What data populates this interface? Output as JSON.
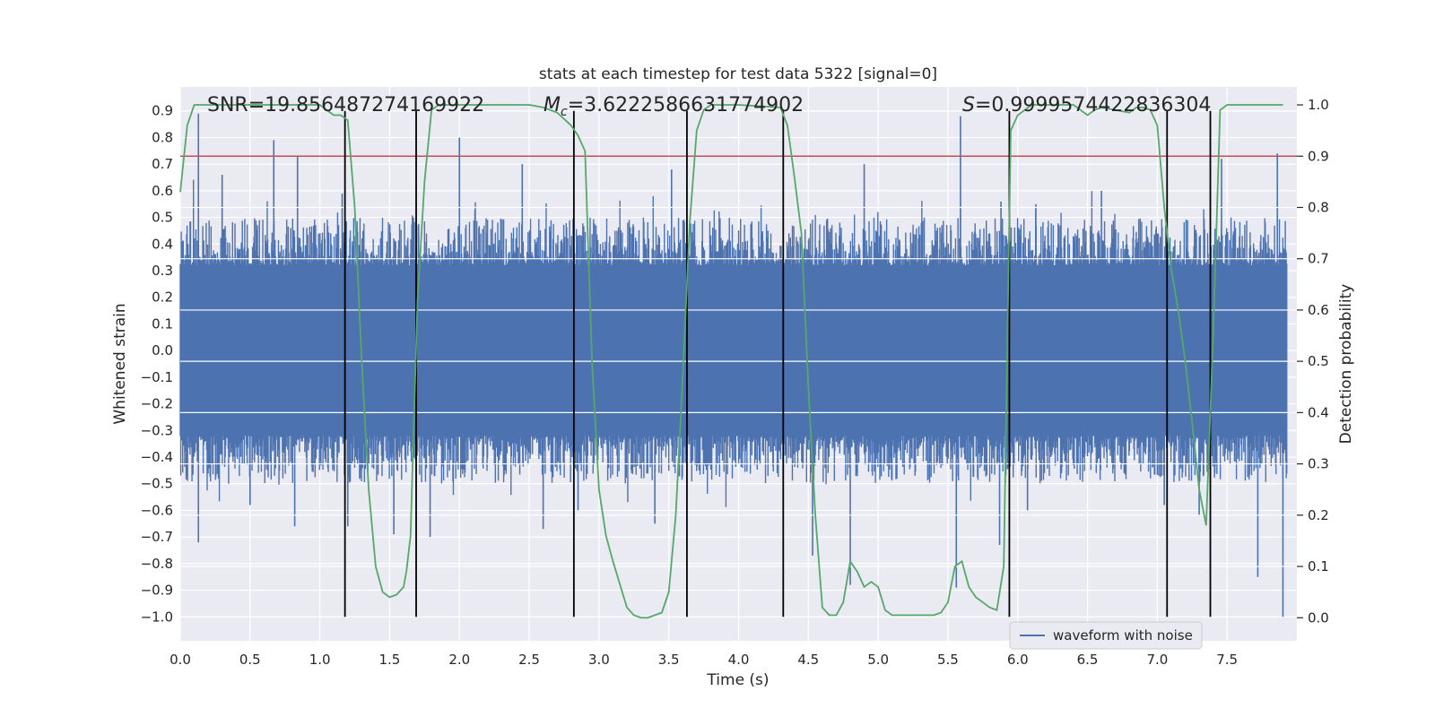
{
  "chart_data": {
    "type": "line",
    "title": "stats at each timestep for test data 5322 [signal=0]",
    "xlabel": "Time (s)",
    "ylabel": "Whitened strain",
    "y2label": "Detection probability",
    "xlim": [
      0.0,
      8.0
    ],
    "ylim": [
      -1.09,
      0.99
    ],
    "y2lim": [
      -0.045,
      1.035
    ],
    "xticks": [
      0.0,
      0.5,
      1.0,
      1.5,
      2.0,
      2.5,
      3.0,
      3.5,
      4.0,
      4.5,
      5.0,
      5.5,
      6.0,
      6.5,
      7.0,
      7.5
    ],
    "xtick_labels": [
      "0.0",
      "0.5",
      "1.0",
      "1.5",
      "2.0",
      "2.5",
      "3.0",
      "3.5",
      "4.0",
      "4.5",
      "5.0",
      "5.5",
      "6.0",
      "6.5",
      "7.0",
      "7.5"
    ],
    "yticks": [
      0.9,
      0.8,
      0.7,
      0.6,
      0.5,
      0.4,
      0.3,
      0.2,
      0.1,
      0.0,
      -0.1,
      -0.2,
      -0.3,
      -0.4,
      -0.5,
      -0.6,
      -0.7,
      -0.8,
      -0.9,
      -1.0
    ],
    "ytick_labels": [
      "0.9",
      "0.8",
      "0.7",
      "0.6",
      "0.5",
      "0.4",
      "0.3",
      "0.2",
      "0.1",
      "0.0",
      "−0.1",
      "−0.2",
      "−0.3",
      "−0.4",
      "−0.5",
      "−0.6",
      "−0.7",
      "−0.8",
      "−0.9",
      "−1.0"
    ],
    "y2ticks": [
      1.0,
      0.9,
      0.8,
      0.7,
      0.6,
      0.5,
      0.4,
      0.3,
      0.2,
      0.1,
      0.0
    ],
    "y2tick_labels": [
      "1.0",
      "0.9",
      "0.8",
      "0.7",
      "0.6",
      "0.5",
      "0.4",
      "0.3",
      "0.2",
      "0.1",
      "0.0"
    ],
    "grid": true,
    "legend": {
      "location": "lower-right",
      "entries": [
        "waveform with noise"
      ]
    },
    "annotations": {
      "snr": "SNR=19.856487274169922",
      "mc_symbol": "M",
      "mc_subscript": "c",
      "mc_value": "=3.6222586631774902",
      "s_symbol": "S",
      "s_value": "=0.9999574422836304"
    },
    "threshold": {
      "y2": 0.9,
      "color": "#c44e52"
    },
    "vertical_markers": {
      "x": [
        1.18,
        1.69,
        2.82,
        3.63,
        4.32,
        5.94,
        7.07,
        7.38
      ],
      "y_from": -1.0,
      "y_to": 0.9
    },
    "series": [
      {
        "name": "waveform with noise",
        "axis": "left",
        "color": "#4c72b0",
        "style": "dense noise trace",
        "core_amplitude": 0.32,
        "typical_peak": 0.45,
        "peak_spikes": [
          [
            0.13,
            0.89
          ],
          [
            0.3,
            0.66
          ],
          [
            0.67,
            0.79
          ],
          [
            0.84,
            0.73
          ],
          [
            1.16,
            0.59
          ],
          [
            1.67,
            0.5
          ],
          [
            2.0,
            0.8
          ],
          [
            2.45,
            0.7
          ],
          [
            3.52,
            0.68
          ],
          [
            4.9,
            0.7
          ],
          [
            5.59,
            0.88
          ],
          [
            5.88,
            0.56
          ],
          [
            6.13,
            0.55
          ],
          [
            6.6,
            0.6
          ],
          [
            7.46,
            0.72
          ],
          [
            7.86,
            0.74
          ]
        ],
        "trough_spikes": [
          [
            0.13,
            -0.72
          ],
          [
            0.5,
            -0.58
          ],
          [
            0.82,
            -0.66
          ],
          [
            1.2,
            -0.66
          ],
          [
            1.53,
            -0.69
          ],
          [
            1.79,
            -0.7
          ],
          [
            2.6,
            -0.67
          ],
          [
            2.85,
            -0.6
          ],
          [
            3.4,
            -0.65
          ],
          [
            4.53,
            -0.77
          ],
          [
            4.8,
            -0.88
          ],
          [
            5.56,
            -0.89
          ],
          [
            5.87,
            -0.73
          ],
          [
            6.07,
            -0.6
          ],
          [
            7.05,
            -0.58
          ],
          [
            7.3,
            -0.62
          ],
          [
            7.72,
            -0.85
          ],
          [
            7.9,
            -1.0
          ]
        ]
      },
      {
        "name": "detection probability",
        "axis": "right",
        "color": "#55a868",
        "x": [
          0.0,
          0.05,
          0.1,
          0.3,
          0.5,
          0.7,
          0.9,
          1.0,
          1.1,
          1.15,
          1.2,
          1.25,
          1.3,
          1.35,
          1.4,
          1.45,
          1.5,
          1.55,
          1.6,
          1.62,
          1.65,
          1.67,
          1.7,
          1.75,
          1.8,
          1.85,
          2.0,
          2.5,
          2.6,
          2.7,
          2.8,
          2.85,
          2.9,
          2.95,
          3.0,
          3.05,
          3.1,
          3.2,
          3.25,
          3.3,
          3.35,
          3.4,
          3.45,
          3.5,
          3.55,
          3.6,
          3.65,
          3.7,
          3.75,
          3.8,
          4.0,
          4.3,
          4.35,
          4.4,
          4.45,
          4.5,
          4.55,
          4.6,
          4.65,
          4.7,
          4.75,
          4.8,
          4.85,
          4.9,
          4.95,
          5.0,
          5.05,
          5.1,
          5.15,
          5.2,
          5.3,
          5.4,
          5.45,
          5.5,
          5.55,
          5.6,
          5.65,
          5.7,
          5.75,
          5.8,
          5.85,
          5.9,
          5.95,
          6.0,
          6.05,
          6.1,
          6.2,
          6.3,
          6.4,
          6.5,
          6.55,
          6.6,
          6.7,
          6.8,
          6.85,
          6.9,
          6.95,
          7.0,
          7.05,
          7.1,
          7.15,
          7.2,
          7.25,
          7.3,
          7.35,
          7.4,
          7.45,
          7.5,
          7.6,
          7.7,
          7.8,
          7.9
        ],
        "y": [
          0.83,
          0.96,
          1.0,
          1.0,
          1.0,
          1.0,
          1.0,
          1.0,
          0.98,
          0.98,
          0.97,
          0.8,
          0.5,
          0.25,
          0.1,
          0.05,
          0.04,
          0.045,
          0.06,
          0.09,
          0.16,
          0.35,
          0.62,
          0.85,
          0.99,
          1.0,
          1.0,
          1.0,
          0.995,
          0.985,
          0.96,
          0.94,
          0.91,
          0.5,
          0.25,
          0.16,
          0.11,
          0.02,
          0.005,
          0.0,
          0.0,
          0.005,
          0.01,
          0.05,
          0.2,
          0.47,
          0.77,
          0.95,
          0.99,
          1.0,
          1.0,
          0.995,
          0.96,
          0.86,
          0.75,
          0.45,
          0.2,
          0.02,
          0.005,
          0.005,
          0.03,
          0.11,
          0.09,
          0.06,
          0.07,
          0.06,
          0.015,
          0.005,
          0.005,
          0.005,
          0.005,
          0.005,
          0.01,
          0.03,
          0.1,
          0.11,
          0.06,
          0.04,
          0.03,
          0.02,
          0.015,
          0.1,
          0.95,
          0.98,
          0.99,
          1.0,
          1.0,
          1.0,
          1.0,
          0.98,
          0.99,
          0.995,
          0.99,
          0.985,
          0.995,
          0.995,
          0.99,
          0.96,
          0.8,
          0.68,
          0.6,
          0.5,
          0.38,
          0.25,
          0.18,
          0.55,
          0.99,
          1.0,
          1.0,
          1.0,
          1.0,
          1.0
        ]
      }
    ]
  }
}
